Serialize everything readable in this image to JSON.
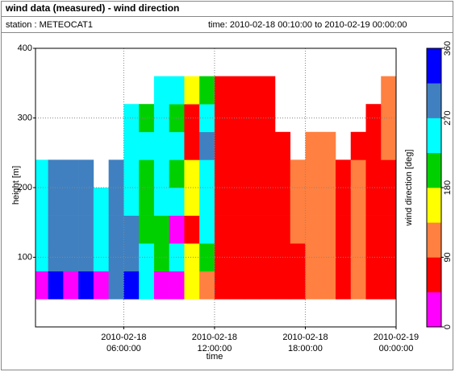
{
  "header": {
    "title": "wind data (measured) - wind direction",
    "station": "station : METEOCAT1",
    "time": "time: 2010-02-18 00:10:00 to 2010-02-19 00:00:00"
  },
  "chart_data": {
    "type": "heatmap",
    "ylabel": "height [m]",
    "xlabel": "time",
    "x": [
      "2010-02-18 00:10:00",
      "2010-02-18 01:00:00",
      "2010-02-18 02:00:00",
      "2010-02-18 03:00:00",
      "2010-02-18 04:00:00",
      "2010-02-18 05:00:00",
      "2010-02-18 06:00:00",
      "2010-02-18 07:00:00",
      "2010-02-18 08:00:00",
      "2010-02-18 09:00:00",
      "2010-02-18 10:00:00",
      "2010-02-18 11:00:00",
      "2010-02-18 12:00:00",
      "2010-02-18 13:00:00",
      "2010-02-18 14:00:00",
      "2010-02-18 15:00:00",
      "2010-02-18 16:00:00",
      "2010-02-18 17:00:00",
      "2010-02-18 18:00:00",
      "2010-02-18 19:00:00",
      "2010-02-18 20:00:00",
      "2010-02-18 21:00:00",
      "2010-02-18 22:00:00",
      "2010-02-18 23:00:00"
    ],
    "y_bins": [
      40,
      80,
      120,
      160,
      200,
      240,
      280,
      320,
      360
    ],
    "z": [
      [
        22,
        337,
        22,
        337,
        22,
        292,
        337,
        247,
        22,
        22,
        157,
        112,
        67,
        67,
        67,
        67,
        67,
        67,
        112,
        112,
        67,
        112,
        67,
        67
      ],
      [
        247,
        292,
        292,
        292,
        247,
        292,
        292,
        247,
        202,
        247,
        157,
        202,
        67,
        67,
        67,
        67,
        67,
        67,
        112,
        112,
        67,
        112,
        67,
        67
      ],
      [
        247,
        292,
        292,
        292,
        247,
        292,
        292,
        202,
        202,
        22,
        67,
        247,
        67,
        67,
        67,
        67,
        67,
        112,
        112,
        112,
        67,
        112,
        67,
        67
      ],
      [
        247,
        292,
        292,
        292,
        247,
        292,
        247,
        202,
        247,
        247,
        157,
        247,
        67,
        67,
        67,
        67,
        67,
        112,
        112,
        112,
        67,
        112,
        67,
        67
      ],
      [
        247,
        292,
        292,
        292,
        null,
        292,
        247,
        202,
        247,
        202,
        157,
        247,
        67,
        67,
        67,
        67,
        67,
        112,
        112,
        112,
        67,
        112,
        67,
        67
      ],
      [
        null,
        null,
        null,
        null,
        null,
        null,
        247,
        247,
        247,
        247,
        67,
        292,
        67,
        67,
        67,
        67,
        67,
        null,
        112,
        112,
        null,
        67,
        67,
        112
      ],
      [
        null,
        null,
        null,
        null,
        null,
        null,
        247,
        202,
        247,
        202,
        67,
        247,
        67,
        67,
        67,
        67,
        null,
        null,
        null,
        null,
        null,
        null,
        67,
        112
      ],
      [
        null,
        null,
        null,
        null,
        null,
        null,
        null,
        null,
        247,
        247,
        157,
        202,
        67,
        67,
        67,
        67,
        null,
        null,
        null,
        null,
        null,
        null,
        null,
        112
      ]
    ],
    "xlim": [
      "2010-02-18 00:10:00",
      "2010-02-19 00:00:00"
    ],
    "xticks": [
      {
        "value": "2010-02-18 06:00:00",
        "label": [
          "2010-02-18",
          "06:00:00"
        ]
      },
      {
        "value": "2010-02-18 12:00:00",
        "label": [
          "2010-02-18",
          "12:00:00"
        ]
      },
      {
        "value": "2010-02-18 18:00:00",
        "label": [
          "2010-02-18",
          "18:00:00"
        ]
      },
      {
        "value": "2010-02-19 00:00:00",
        "label": [
          "2010-02-19",
          "00:00:00"
        ]
      }
    ],
    "ylim": [
      0,
      400
    ],
    "yticks": [
      100,
      200,
      300,
      400
    ],
    "grid": true,
    "colorbar": {
      "label": "wind direction [deg]",
      "lim": [
        0,
        360
      ],
      "ticks": [
        0,
        90,
        180,
        270,
        360
      ],
      "colors": [
        "#ff00ff",
        "#ff0000",
        "#ff8040",
        "#ffff00",
        "#00d000",
        "#00ffff",
        "#4080c0",
        "#0000ff"
      ]
    }
  }
}
